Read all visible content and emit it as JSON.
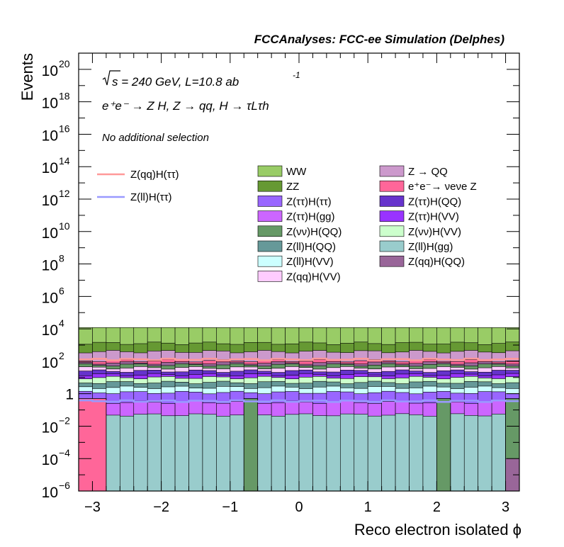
{
  "chart_data": {
    "type": "bar",
    "stacked": true,
    "title": "FCCAnalyses: FCC-ee Simulation (Delphes)",
    "xlabel": "Reco electron isolated ϕ",
    "ylabel": "Events",
    "yscale": "log",
    "xlim": [
      -3.2,
      3.2
    ],
    "ylim": [
      1e-06,
      1e+21
    ],
    "x_ticks": [
      -3,
      -2,
      -1,
      0,
      1,
      2,
      3
    ],
    "x_tick_labels": [
      "−3",
      "−2",
      "−1",
      "0",
      "1",
      "2",
      "3"
    ],
    "y_tick_labels": [
      {
        "base": "10",
        "exp": "−6",
        "value": 1e-06
      },
      {
        "base": "10",
        "exp": "−4",
        "value": 0.0001
      },
      {
        "base": "10",
        "exp": "−2",
        "value": 0.01
      },
      {
        "base": "1",
        "exp": "",
        "value": 1
      },
      {
        "base": "10",
        "exp": "2",
        "value": 100.0
      },
      {
        "base": "10",
        "exp": "4",
        "value": 10000.0
      },
      {
        "base": "10",
        "exp": "6",
        "value": 1000000.0
      },
      {
        "base": "10",
        "exp": "8",
        "value": 100000000.0
      },
      {
        "base": "10",
        "exp": "10",
        "value": 10000000000.0
      },
      {
        "base": "10",
        "exp": "12",
        "value": 1000000000000.0
      },
      {
        "base": "10",
        "exp": "14",
        "value": 100000000000000.0
      },
      {
        "base": "10",
        "exp": "16",
        "value": 1e+16
      },
      {
        "base": "10",
        "exp": "18",
        "value": 1e+18
      },
      {
        "base": "10",
        "exp": "20",
        "value": 1e+20
      }
    ],
    "annotations": {
      "energy": "s = 240 GeV, L=10.8 ab",
      "energy_exp": "-1",
      "process": "e⁺e⁻ → Z H, Z → qq, H → τLτh",
      "selection": "No additional selection"
    },
    "bins": 32,
    "stack_top_values": [
      12000,
      12000,
      12000,
      12000,
      12000,
      12000,
      12000,
      12000,
      12000,
      12000,
      12000,
      12000,
      12000,
      12000,
      12000,
      12000,
      12000,
      12000,
      12000,
      12000,
      12000,
      12000,
      12000,
      12000,
      12000,
      12000,
      12000,
      12000,
      12000,
      12000,
      12000,
      12000
    ],
    "series": [
      {
        "name": "Z(ll)H(gg)",
        "color": "#99cccc",
        "level": 0.05
      },
      {
        "name": "Z(ττ)H(gg)",
        "color": "#cc66ff",
        "level": 0.3
      },
      {
        "name": "Z(ττ)H(ττ)",
        "color": "#9966ff",
        "level": 1.2
      },
      {
        "name": "Z(ll)H(VV)",
        "color": "#ccffff",
        "level": 2.5
      },
      {
        "name": "Z(ll)H(QQ)",
        "color": "#669999",
        "level": 5
      },
      {
        "name": "Z(νν)H(VV)",
        "color": "#ccffcc",
        "level": 10
      },
      {
        "name": "Z(ττ)H(VV)",
        "color": "#9933ff",
        "level": 15
      },
      {
        "name": "Z(ττ)H(QQ)",
        "color": "#6633cc",
        "level": 25
      },
      {
        "name": "Z(qq)H(VV)",
        "color": "#ffccff",
        "level": 40
      },
      {
        "name": "Z(νν)H(QQ)",
        "color": "#669966",
        "level": 60
      },
      {
        "name": "Z(qq)H(QQ)",
        "color": "#996699",
        "level": 80
      },
      {
        "name": "e⁺e⁻→ νeνe Z",
        "color": "#ff6699",
        "level": 110
      },
      {
        "name": "Z → QQ",
        "color": "#cc99cc",
        "level": 400
      },
      {
        "name": "ZZ",
        "color": "#669933",
        "level": 1300
      },
      {
        "name": "WW",
        "color": "#99cc66",
        "level": 12000
      }
    ],
    "overlay_lines": [
      {
        "name": "Z(qq)H(ττ)",
        "color": "#ff9999",
        "level": 130
      },
      {
        "name": "Z(ll)H(ττ)",
        "color": "#9999ff",
        "level": 0.35
      }
    ],
    "legend": {
      "placement": "top-right",
      "lines": [
        "Z(qq)H(ττ)",
        "Z(ll)H(ττ)"
      ],
      "col1": [
        "WW",
        "ZZ",
        "Z(ττ)H(ττ)",
        "Z(ττ)H(gg)",
        "Z(νν)H(QQ)",
        "Z(ll)H(QQ)",
        "Z(ll)H(VV)",
        "Z(qq)H(VV)"
      ],
      "col2": [
        "Z → QQ",
        "e⁺e⁻→ νeνe Z",
        "Z(ττ)H(QQ)",
        "Z(ττ)H(VV)",
        "Z(νν)H(VV)",
        "Z(ll)H(gg)",
        "Z(qq)H(QQ)"
      ]
    },
    "special_bins": [
      {
        "x_range": [
          -3.2,
          -2.8
        ],
        "series": "e⁺e⁻→ νeνe Z",
        "note": "fills bottom region"
      },
      {
        "x_range": [
          -0.8,
          -0.6
        ],
        "series": "Z(νν)H(QQ)",
        "note": "fills bottom region"
      },
      {
        "x_range": [
          2.0,
          2.2
        ],
        "series": "Z(νν)H(QQ)",
        "note": "fills bottom region"
      },
      {
        "x_range": [
          3.0,
          3.2
        ],
        "series": "Z(νν)H(QQ)",
        "note": "fills bottom region"
      }
    ]
  }
}
